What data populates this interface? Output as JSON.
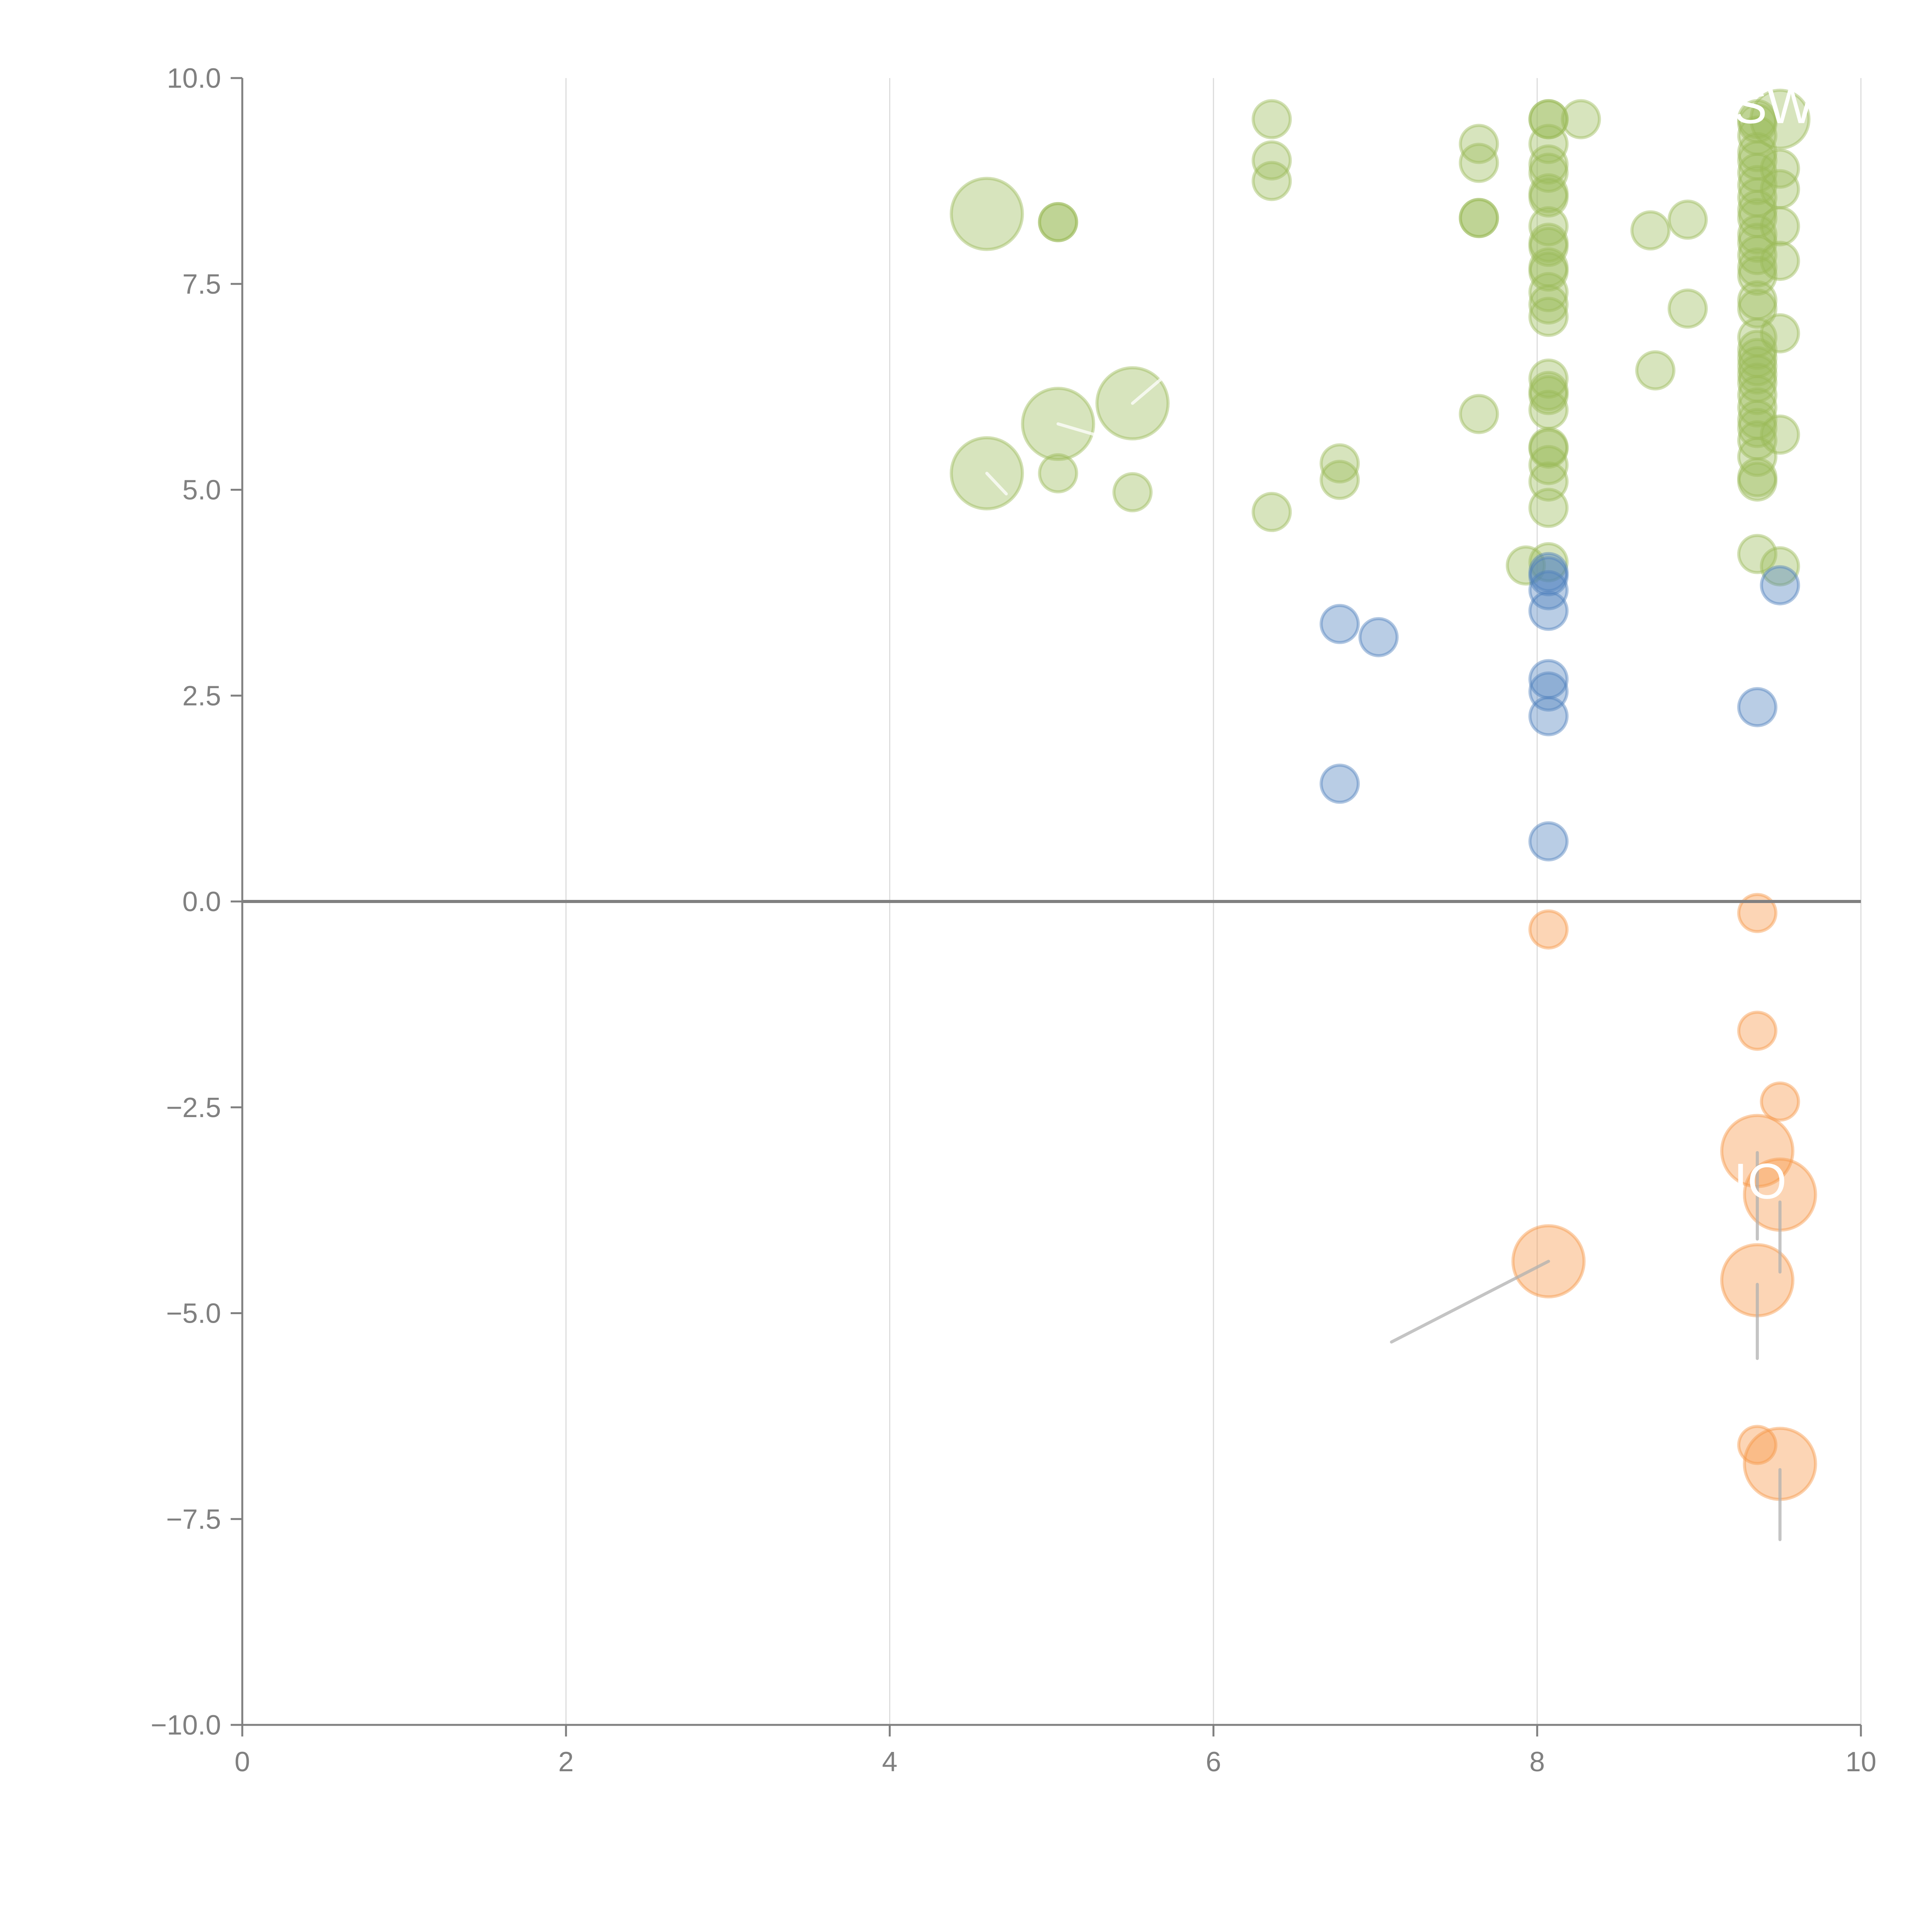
{
  "chart_data": {
    "type": "scatter",
    "subtype": "bubble",
    "title": "",
    "xlabel": "",
    "ylabel": "",
    "xlim": [
      0,
      10
    ],
    "ylim": [
      -10,
      10
    ],
    "x_ticks": [
      0,
      2,
      4,
      6,
      8,
      10
    ],
    "x_tick_labels": [
      "0",
      "2",
      "4",
      "6",
      "8",
      "10"
    ],
    "y_ticks": [
      10,
      7.5,
      5,
      2.5,
      0,
      -2.5,
      -5,
      -7.5,
      -10
    ],
    "y_tick_labels": [
      "10.0",
      "7.5",
      "5.0",
      "2.5",
      "0.0",
      "−2.5",
      "−5.0",
      "−7.5",
      "−10.0"
    ],
    "grid": "vertical",
    "zero_line": true,
    "legend": "none",
    "series": [
      {
        "name": "green",
        "color": "#9bbb59",
        "points": [
          {
            "x": 4.6,
            "y": 8.35,
            "size": 3
          },
          {
            "x": 5.04,
            "y": 8.25,
            "size": 1
          },
          {
            "x": 5.04,
            "y": 8.25,
            "size": 1
          },
          {
            "x": 5.04,
            "y": 5.8,
            "size": 3
          },
          {
            "x": 5.5,
            "y": 6.05,
            "size": 3
          },
          {
            "x": 4.6,
            "y": 5.2,
            "size": 3
          },
          {
            "x": 5.04,
            "y": 5.2,
            "size": 1
          },
          {
            "x": 5.5,
            "y": 4.97,
            "size": 1
          },
          {
            "x": 6.36,
            "y": 9.5,
            "size": 1
          },
          {
            "x": 6.36,
            "y": 9.0,
            "size": 1
          },
          {
            "x": 6.36,
            "y": 8.75,
            "size": 1
          },
          {
            "x": 6.36,
            "y": 4.73,
            "size": 1
          },
          {
            "x": 6.78,
            "y": 5.32,
            "size": 1
          },
          {
            "x": 6.78,
            "y": 5.12,
            "size": 1
          },
          {
            "x": 7.64,
            "y": 9.2,
            "size": 1
          },
          {
            "x": 7.64,
            "y": 8.97,
            "size": 1
          },
          {
            "x": 7.64,
            "y": 8.3,
            "size": 1
          },
          {
            "x": 7.64,
            "y": 8.3,
            "size": 1
          },
          {
            "x": 7.64,
            "y": 5.92,
            "size": 1
          },
          {
            "x": 8.07,
            "y": 9.5,
            "size": 1
          },
          {
            "x": 8.07,
            "y": 9.5,
            "size": 1
          },
          {
            "x": 8.07,
            "y": 9.2,
            "size": 1
          },
          {
            "x": 8.07,
            "y": 8.95,
            "size": 1
          },
          {
            "x": 8.07,
            "y": 8.85,
            "size": 1
          },
          {
            "x": 8.07,
            "y": 8.6,
            "size": 1
          },
          {
            "x": 8.07,
            "y": 8.55,
            "size": 1
          },
          {
            "x": 8.07,
            "y": 8.2,
            "size": 1
          },
          {
            "x": 8.07,
            "y": 8.0,
            "size": 1
          },
          {
            "x": 8.07,
            "y": 7.95,
            "size": 1
          },
          {
            "x": 8.07,
            "y": 7.7,
            "size": 1
          },
          {
            "x": 8.07,
            "y": 7.65,
            "size": 1
          },
          {
            "x": 8.07,
            "y": 7.4,
            "size": 1
          },
          {
            "x": 8.07,
            "y": 7.25,
            "size": 1
          },
          {
            "x": 8.07,
            "y": 7.1,
            "size": 1
          },
          {
            "x": 8.07,
            "y": 6.35,
            "size": 1
          },
          {
            "x": 8.07,
            "y": 6.2,
            "size": 1
          },
          {
            "x": 8.07,
            "y": 6.15,
            "size": 1
          },
          {
            "x": 8.07,
            "y": 5.97,
            "size": 1
          },
          {
            "x": 8.07,
            "y": 5.52,
            "size": 1
          },
          {
            "x": 8.07,
            "y": 5.5,
            "size": 1
          },
          {
            "x": 8.07,
            "y": 5.3,
            "size": 1
          },
          {
            "x": 8.07,
            "y": 5.1,
            "size": 1
          },
          {
            "x": 8.07,
            "y": 4.78,
            "size": 1
          },
          {
            "x": 8.07,
            "y": 4.12,
            "size": 1
          },
          {
            "x": 7.93,
            "y": 4.08,
            "size": 1
          },
          {
            "x": 8.27,
            "y": 9.5,
            "size": 1
          },
          {
            "x": 8.7,
            "y": 8.15,
            "size": 1
          },
          {
            "x": 8.93,
            "y": 8.28,
            "size": 1
          },
          {
            "x": 8.93,
            "y": 7.2,
            "size": 1
          },
          {
            "x": 8.73,
            "y": 6.45,
            "size": 1
          },
          {
            "x": 9.36,
            "y": 9.5,
            "size": 1
          },
          {
            "x": 9.36,
            "y": 9.45,
            "size": 1
          },
          {
            "x": 9.36,
            "y": 9.3,
            "size": 1
          },
          {
            "x": 9.36,
            "y": 9.1,
            "size": 1
          },
          {
            "x": 9.36,
            "y": 9.0,
            "size": 1
          },
          {
            "x": 9.36,
            "y": 8.85,
            "size": 1
          },
          {
            "x": 9.36,
            "y": 8.7,
            "size": 1
          },
          {
            "x": 9.36,
            "y": 8.55,
            "size": 1
          },
          {
            "x": 9.36,
            "y": 8.4,
            "size": 1
          },
          {
            "x": 9.36,
            "y": 8.3,
            "size": 1
          },
          {
            "x": 9.36,
            "y": 8.1,
            "size": 1
          },
          {
            "x": 9.36,
            "y": 8.0,
            "size": 1
          },
          {
            "x": 9.36,
            "y": 7.85,
            "size": 1
          },
          {
            "x": 9.36,
            "y": 7.7,
            "size": 1
          },
          {
            "x": 9.36,
            "y": 7.6,
            "size": 1
          },
          {
            "x": 9.36,
            "y": 7.3,
            "size": 1
          },
          {
            "x": 9.36,
            "y": 7.2,
            "size": 1
          },
          {
            "x": 9.36,
            "y": 6.85,
            "size": 1
          },
          {
            "x": 9.36,
            "y": 6.7,
            "size": 1
          },
          {
            "x": 9.36,
            "y": 6.6,
            "size": 1
          },
          {
            "x": 9.36,
            "y": 6.5,
            "size": 1
          },
          {
            "x": 9.36,
            "y": 6.4,
            "size": 1
          },
          {
            "x": 9.36,
            "y": 6.3,
            "size": 1
          },
          {
            "x": 9.36,
            "y": 6.15,
            "size": 1
          },
          {
            "x": 9.36,
            "y": 6.0,
            "size": 1
          },
          {
            "x": 9.36,
            "y": 5.85,
            "size": 1
          },
          {
            "x": 9.36,
            "y": 5.75,
            "size": 1
          },
          {
            "x": 9.36,
            "y": 5.6,
            "size": 1
          },
          {
            "x": 9.36,
            "y": 5.4,
            "size": 1
          },
          {
            "x": 9.36,
            "y": 5.15,
            "size": 1
          },
          {
            "x": 9.36,
            "y": 5.1,
            "size": 1
          },
          {
            "x": 9.36,
            "y": 4.22,
            "size": 1
          },
          {
            "x": 9.5,
            "y": 9.5,
            "size": 2
          },
          {
            "x": 9.5,
            "y": 8.9,
            "size": 1
          },
          {
            "x": 9.5,
            "y": 8.65,
            "size": 1
          },
          {
            "x": 9.5,
            "y": 8.2,
            "size": 1
          },
          {
            "x": 9.5,
            "y": 7.78,
            "size": 1
          },
          {
            "x": 9.5,
            "y": 6.9,
            "size": 1
          },
          {
            "x": 9.5,
            "y": 5.67,
            "size": 1
          },
          {
            "x": 9.5,
            "y": 4.07,
            "size": 1
          }
        ]
      },
      {
        "name": "blue",
        "color": "#4f81bd",
        "points": [
          {
            "x": 8.07,
            "y": 4.0,
            "size": 1
          },
          {
            "x": 8.07,
            "y": 3.95,
            "size": 1
          },
          {
            "x": 8.07,
            "y": 3.78,
            "size": 1
          },
          {
            "x": 8.07,
            "y": 3.53,
            "size": 1
          },
          {
            "x": 6.78,
            "y": 3.37,
            "size": 1
          },
          {
            "x": 7.02,
            "y": 3.21,
            "size": 1
          },
          {
            "x": 8.07,
            "y": 2.7,
            "size": 1
          },
          {
            "x": 8.07,
            "y": 2.55,
            "size": 1
          },
          {
            "x": 8.07,
            "y": 2.25,
            "size": 1
          },
          {
            "x": 9.36,
            "y": 2.36,
            "size": 1
          },
          {
            "x": 9.5,
            "y": 3.84,
            "size": 1
          },
          {
            "x": 6.78,
            "y": 1.43,
            "size": 1
          },
          {
            "x": 8.07,
            "y": 0.73,
            "size": 1
          }
        ]
      },
      {
        "name": "orange",
        "color": "#f79646",
        "points": [
          {
            "x": 9.36,
            "y": -0.14,
            "size": 1
          },
          {
            "x": 8.07,
            "y": -0.34,
            "size": 1
          },
          {
            "x": 9.36,
            "y": -1.57,
            "size": 1
          },
          {
            "x": 9.5,
            "y": -2.43,
            "size": 1
          },
          {
            "x": 9.36,
            "y": -3.03,
            "size": 3
          },
          {
            "x": 9.5,
            "y": -3.56,
            "size": 3
          },
          {
            "x": 8.07,
            "y": -4.37,
            "size": 3
          },
          {
            "x": 9.36,
            "y": -4.6,
            "size": 3
          },
          {
            "x": 9.36,
            "y": -6.6,
            "size": 1
          },
          {
            "x": 9.5,
            "y": -6.83,
            "size": 3
          }
        ]
      }
    ],
    "annotations": [
      {
        "text": "SW",
        "x": 9.5,
        "y": 9.5,
        "color": "#ffffff",
        "clipped": true
      },
      {
        "text": "IO",
        "x": 9.5,
        "y": -3.56,
        "color": "#ffffff",
        "clipped": true
      }
    ],
    "leader_lines": [
      {
        "series": "green",
        "from": [
          4.6,
          5.2
        ],
        "to": [
          4.72,
          4.95
        ],
        "color": "#ffffff"
      },
      {
        "series": "green",
        "from": [
          5.04,
          5.8
        ],
        "to": [
          5.3,
          5.65
        ],
        "color": "#ffffff"
      },
      {
        "series": "green",
        "from": [
          5.5,
          6.05
        ],
        "to": [
          5.68,
          6.35
        ],
        "color": "#ffffff"
      },
      {
        "series": "orange",
        "from": [
          8.07,
          -4.37
        ],
        "to": [
          7.1,
          -5.35
        ],
        "color": "#b0b0b0"
      },
      {
        "series": "orange",
        "from": [
          9.36,
          -3.05
        ],
        "to": [
          9.36,
          -4.1
        ],
        "color": "#b0b0b0"
      },
      {
        "series": "orange",
        "from": [
          9.5,
          -3.65
        ],
        "to": [
          9.5,
          -4.5
        ],
        "color": "#b0b0b0"
      },
      {
        "series": "orange",
        "from": [
          9.36,
          -4.65
        ],
        "to": [
          9.36,
          -5.55
        ],
        "color": "#b0b0b0"
      },
      {
        "series": "orange",
        "from": [
          9.5,
          -6.9
        ],
        "to": [
          9.5,
          -7.75
        ],
        "color": "#b0b0b0"
      }
    ]
  }
}
